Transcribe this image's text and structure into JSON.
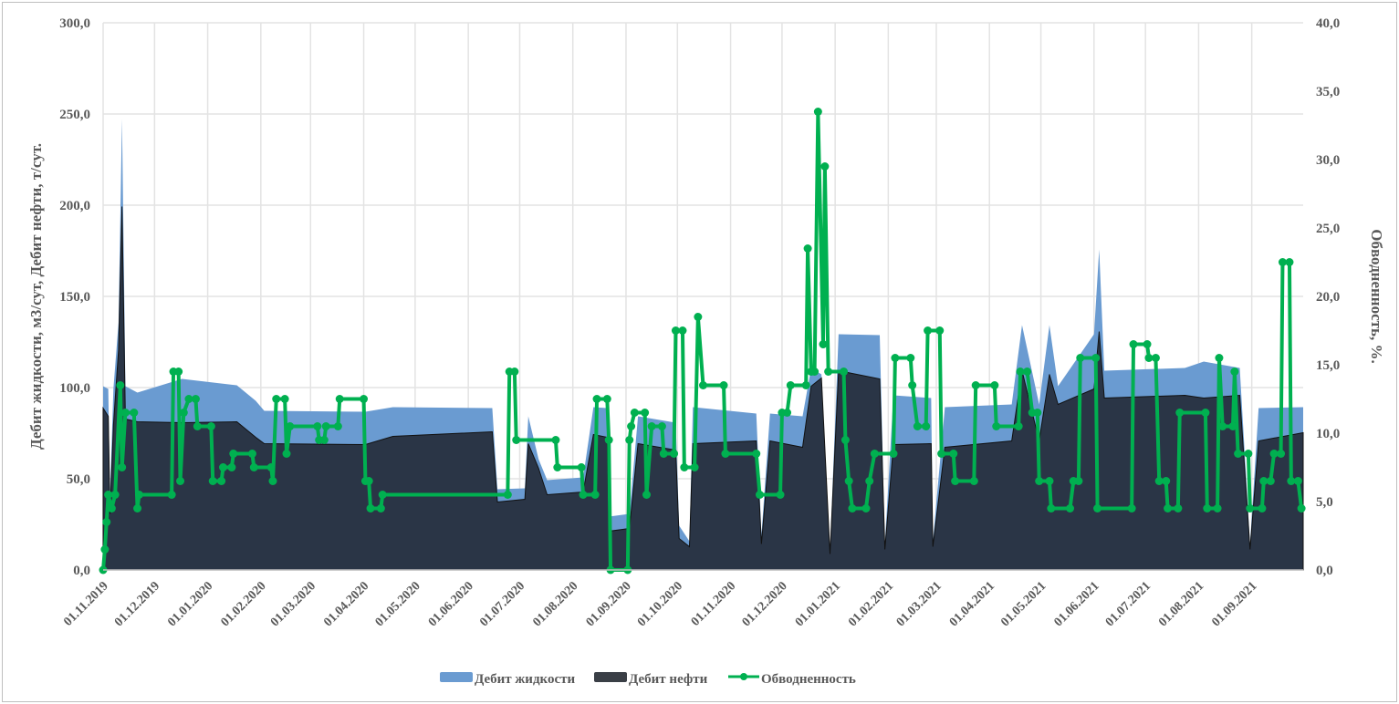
{
  "chart_data": {
    "type": "area+line",
    "x_unit": "days since 01.11.2019",
    "xlim": [
      0,
      700
    ],
    "x_ticks": [
      {
        "day": 0,
        "label": "01.11.2019"
      },
      {
        "day": 30,
        "label": "01.12.2019"
      },
      {
        "day": 61,
        "label": "01.01.2020"
      },
      {
        "day": 92,
        "label": "01.02.2020"
      },
      {
        "day": 121,
        "label": "01.03.2020"
      },
      {
        "day": 152,
        "label": "01.04.2020"
      },
      {
        "day": 182,
        "label": "01.05.2020"
      },
      {
        "day": 213,
        "label": "01.06.2020"
      },
      {
        "day": 243,
        "label": "01.07.2020"
      },
      {
        "day": 274,
        "label": "01.08.2020"
      },
      {
        "day": 305,
        "label": "01.09.2020"
      },
      {
        "day": 335,
        "label": "01.10.2020"
      },
      {
        "day": 366,
        "label": "01.11.2020"
      },
      {
        "day": 396,
        "label": "01.12.2020"
      },
      {
        "day": 427,
        "label": "01.01.2021"
      },
      {
        "day": 458,
        "label": "01.02.2021"
      },
      {
        "day": 486,
        "label": "01.03.2021"
      },
      {
        "day": 517,
        "label": "01.04.2021"
      },
      {
        "day": 547,
        "label": "01.05.2021"
      },
      {
        "day": 578,
        "label": "01.06.2021"
      },
      {
        "day": 608,
        "label": "01.07.2021"
      },
      {
        "day": 639,
        "label": "01.08.2021"
      },
      {
        "day": 670,
        "label": "01.09.2021"
      }
    ],
    "y_left": {
      "label": "Дебит жидкости, м3/сут, Дебит нефти, т/сут.",
      "ylim": [
        0,
        300
      ],
      "ticks": [
        "0,0",
        "50,0",
        "100,0",
        "150,0",
        "200,0",
        "250,0",
        "300,0"
      ]
    },
    "y_right": {
      "label": "Обводненность, %.",
      "ylim": [
        0,
        40
      ],
      "ticks": [
        "0,0",
        "5,0",
        "10,0",
        "15,0",
        "20,0",
        "25,0",
        "30,0",
        "35,0",
        "40,0"
      ]
    },
    "grid": true,
    "legend_position": "bottom",
    "series": [
      {
        "name": "Дебит жидкости",
        "type": "area",
        "axis": "left",
        "color": "#6a9bd1",
        "points": [
          [
            0,
            100
          ],
          [
            3,
            100
          ],
          [
            4,
            40
          ],
          [
            6,
            100
          ],
          [
            9,
            135
          ],
          [
            11,
            248
          ],
          [
            13,
            100
          ],
          [
            20,
            98
          ],
          [
            46,
            104
          ],
          [
            78,
            102
          ],
          [
            89,
            92
          ],
          [
            94,
            88
          ],
          [
            153,
            86
          ],
          [
            169,
            90
          ],
          [
            227,
            88
          ],
          [
            230,
            45
          ],
          [
            246,
            44
          ],
          [
            248,
            85
          ],
          [
            254,
            60
          ],
          [
            259,
            50
          ],
          [
            280,
            50
          ],
          [
            286,
            90
          ],
          [
            294,
            88
          ],
          [
            295,
            30
          ],
          [
            307,
            30
          ],
          [
            312,
            85
          ],
          [
            334,
            80
          ],
          [
            336,
            25
          ],
          [
            342,
            15
          ],
          [
            344,
            90
          ],
          [
            381,
            85
          ],
          [
            384,
            20
          ],
          [
            389,
            85
          ],
          [
            408,
            85
          ],
          [
            413,
            110
          ],
          [
            419,
            108
          ],
          [
            424,
            10
          ],
          [
            429,
            130
          ],
          [
            453,
            128
          ],
          [
            456,
            15
          ],
          [
            461,
            95
          ],
          [
            483,
            95
          ],
          [
            484,
            15
          ],
          [
            491,
            90
          ],
          [
            530,
            90
          ],
          [
            536,
            135
          ],
          [
            546,
            90
          ],
          [
            552,
            135
          ],
          [
            557,
            100
          ],
          [
            578,
            130
          ],
          [
            581,
            175
          ],
          [
            584,
            110
          ],
          [
            631,
            110
          ],
          [
            642,
            115
          ],
          [
            663,
            110
          ],
          [
            669,
            15
          ],
          [
            674,
            88
          ],
          [
            700,
            90
          ]
        ]
      },
      {
        "name": "Дебит нефти",
        "type": "area",
        "axis": "left",
        "color": "#2a3546",
        "points": [
          [
            0,
            88
          ],
          [
            3,
            85
          ],
          [
            4,
            30
          ],
          [
            6,
            80
          ],
          [
            9,
            120
          ],
          [
            11,
            200
          ],
          [
            13,
            82
          ],
          [
            20,
            82
          ],
          [
            46,
            80
          ],
          [
            78,
            82
          ],
          [
            89,
            72
          ],
          [
            94,
            70
          ],
          [
            153,
            68
          ],
          [
            169,
            74
          ],
          [
            227,
            75
          ],
          [
            230,
            38
          ],
          [
            246,
            38
          ],
          [
            248,
            70
          ],
          [
            254,
            55
          ],
          [
            259,
            42
          ],
          [
            280,
            42
          ],
          [
            286,
            75
          ],
          [
            294,
            72
          ],
          [
            295,
            22
          ],
          [
            307,
            22
          ],
          [
            312,
            70
          ],
          [
            334,
            65
          ],
          [
            336,
            18
          ],
          [
            342,
            12
          ],
          [
            344,
            70
          ],
          [
            381,
            70
          ],
          [
            384,
            15
          ],
          [
            389,
            70
          ],
          [
            408,
            68
          ],
          [
            413,
            100
          ],
          [
            419,
            106
          ],
          [
            424,
            8
          ],
          [
            429,
            110
          ],
          [
            453,
            104
          ],
          [
            456,
            12
          ],
          [
            461,
            68
          ],
          [
            483,
            70
          ],
          [
            484,
            12
          ],
          [
            491,
            68
          ],
          [
            530,
            70
          ],
          [
            536,
            110
          ],
          [
            546,
            70
          ],
          [
            552,
            108
          ],
          [
            557,
            90
          ],
          [
            578,
            100
          ],
          [
            581,
            130
          ],
          [
            584,
            95
          ],
          [
            631,
            95
          ],
          [
            642,
            95
          ],
          [
            663,
            95
          ],
          [
            669,
            12
          ],
          [
            674,
            70
          ],
          [
            700,
            76
          ]
        ]
      },
      {
        "name": "Обводненность",
        "type": "line",
        "axis": "right",
        "color": "#00b050",
        "points": [
          [
            0,
            0
          ],
          [
            1,
            1.5
          ],
          [
            2,
            3.5
          ],
          [
            3,
            5.5
          ],
          [
            5,
            4.5
          ],
          [
            7,
            5.5
          ],
          [
            10,
            13.5
          ],
          [
            11,
            7.5
          ],
          [
            13,
            11.5
          ],
          [
            18,
            11.5
          ],
          [
            20,
            4.5
          ],
          [
            21,
            5.5
          ],
          [
            40,
            5.5
          ],
          [
            41,
            14.5
          ],
          [
            44,
            14.5
          ],
          [
            45,
            6.5
          ],
          [
            47,
            11.5
          ],
          [
            50,
            12.5
          ],
          [
            54,
            12.5
          ],
          [
            55,
            10.5
          ],
          [
            63,
            10.5
          ],
          [
            64,
            6.5
          ],
          [
            69,
            6.5
          ],
          [
            70,
            7.5
          ],
          [
            75,
            7.5
          ],
          [
            76,
            8.5
          ],
          [
            87,
            8.5
          ],
          [
            88,
            7.5
          ],
          [
            98,
            7.5
          ],
          [
            99,
            6.5
          ],
          [
            101,
            12.5
          ],
          [
            106,
            12.5
          ],
          [
            107,
            8.5
          ],
          [
            109,
            10.5
          ],
          [
            125,
            10.5
          ],
          [
            126,
            9.5
          ],
          [
            129,
            9.5
          ],
          [
            130,
            10.5
          ],
          [
            137,
            10.5
          ],
          [
            138,
            12.5
          ],
          [
            152,
            12.5
          ],
          [
            153,
            6.5
          ],
          [
            155,
            6.5
          ],
          [
            156,
            4.5
          ],
          [
            162,
            4.5
          ],
          [
            163,
            5.5
          ],
          [
            236,
            5.5
          ],
          [
            237,
            14.5
          ],
          [
            240,
            14.5
          ],
          [
            241,
            9.5
          ],
          [
            264,
            9.5
          ],
          [
            265,
            7.5
          ],
          [
            279,
            7.5
          ],
          [
            280,
            5.5
          ],
          [
            287,
            5.5
          ],
          [
            288,
            12.5
          ],
          [
            294,
            12.5
          ],
          [
            295,
            9.5
          ],
          [
            296,
            0
          ],
          [
            306,
            0
          ],
          [
            307,
            9.5
          ],
          [
            308,
            10.5
          ],
          [
            310,
            11.5
          ],
          [
            316,
            11.5
          ],
          [
            317,
            5.5
          ],
          [
            320,
            10.5
          ],
          [
            326,
            10.5
          ],
          [
            327,
            8.5
          ],
          [
            333,
            8.5
          ],
          [
            334,
            17.5
          ],
          [
            338,
            17.5
          ],
          [
            339,
            7.5
          ],
          [
            345,
            7.5
          ],
          [
            347,
            18.5
          ],
          [
            350,
            13.5
          ],
          [
            362,
            13.5
          ],
          [
            363,
            8.5
          ],
          [
            381,
            8.5
          ],
          [
            383,
            5.5
          ],
          [
            395,
            5.5
          ],
          [
            396,
            11.5
          ],
          [
            399,
            11.5
          ],
          [
            401,
            13.5
          ],
          [
            410,
            13.5
          ],
          [
            411,
            23.5
          ],
          [
            413,
            14.5
          ],
          [
            415,
            14.5
          ],
          [
            417,
            33.5
          ],
          [
            420,
            16.5
          ],
          [
            421,
            29.5
          ],
          [
            423,
            14.5
          ],
          [
            432,
            14.5
          ],
          [
            433,
            9.5
          ],
          [
            435,
            6.5
          ],
          [
            437,
            4.5
          ],
          [
            445,
            4.5
          ],
          [
            447,
            6.5
          ],
          [
            450,
            8.5
          ],
          [
            461,
            8.5
          ],
          [
            462,
            15.5
          ],
          [
            471,
            15.5
          ],
          [
            472,
            13.5
          ],
          [
            475,
            10.5
          ],
          [
            480,
            10.5
          ],
          [
            481,
            17.5
          ],
          [
            488,
            17.5
          ],
          [
            489,
            8.5
          ],
          [
            496,
            8.5
          ],
          [
            497,
            6.5
          ],
          [
            508,
            6.5
          ],
          [
            509,
            13.5
          ],
          [
            520,
            13.5
          ],
          [
            521,
            10.5
          ],
          [
            534,
            10.5
          ],
          [
            535,
            14.5
          ],
          [
            539,
            14.5
          ],
          [
            542,
            11.5
          ],
          [
            545,
            11.5
          ],
          [
            546,
            6.5
          ],
          [
            552,
            6.5
          ],
          [
            553,
            4.5
          ],
          [
            564,
            4.5
          ],
          [
            566,
            6.5
          ],
          [
            569,
            6.5
          ],
          [
            570,
            15.5
          ],
          [
            579,
            15.5
          ],
          [
            580,
            4.5
          ],
          [
            600,
            4.5
          ],
          [
            601,
            16.5
          ],
          [
            609,
            16.5
          ],
          [
            610,
            15.5
          ],
          [
            614,
            15.5
          ],
          [
            616,
            6.5
          ],
          [
            620,
            6.5
          ],
          [
            621,
            4.5
          ],
          [
            627,
            4.5
          ],
          [
            628,
            11.5
          ],
          [
            643,
            11.5
          ],
          [
            644,
            4.5
          ],
          [
            650,
            4.5
          ],
          [
            651,
            15.5
          ],
          [
            653,
            10.5
          ],
          [
            659,
            10.5
          ],
          [
            660,
            14.5
          ],
          [
            662,
            8.5
          ],
          [
            668,
            8.5
          ],
          [
            669,
            4.5
          ],
          [
            676,
            4.5
          ],
          [
            677,
            6.5
          ],
          [
            681,
            6.5
          ],
          [
            683,
            8.5
          ],
          [
            687,
            8.5
          ],
          [
            688,
            22.5
          ],
          [
            692,
            22.5
          ],
          [
            693,
            6.5
          ],
          [
            697,
            6.5
          ],
          [
            699,
            4.5
          ]
        ]
      }
    ]
  }
}
